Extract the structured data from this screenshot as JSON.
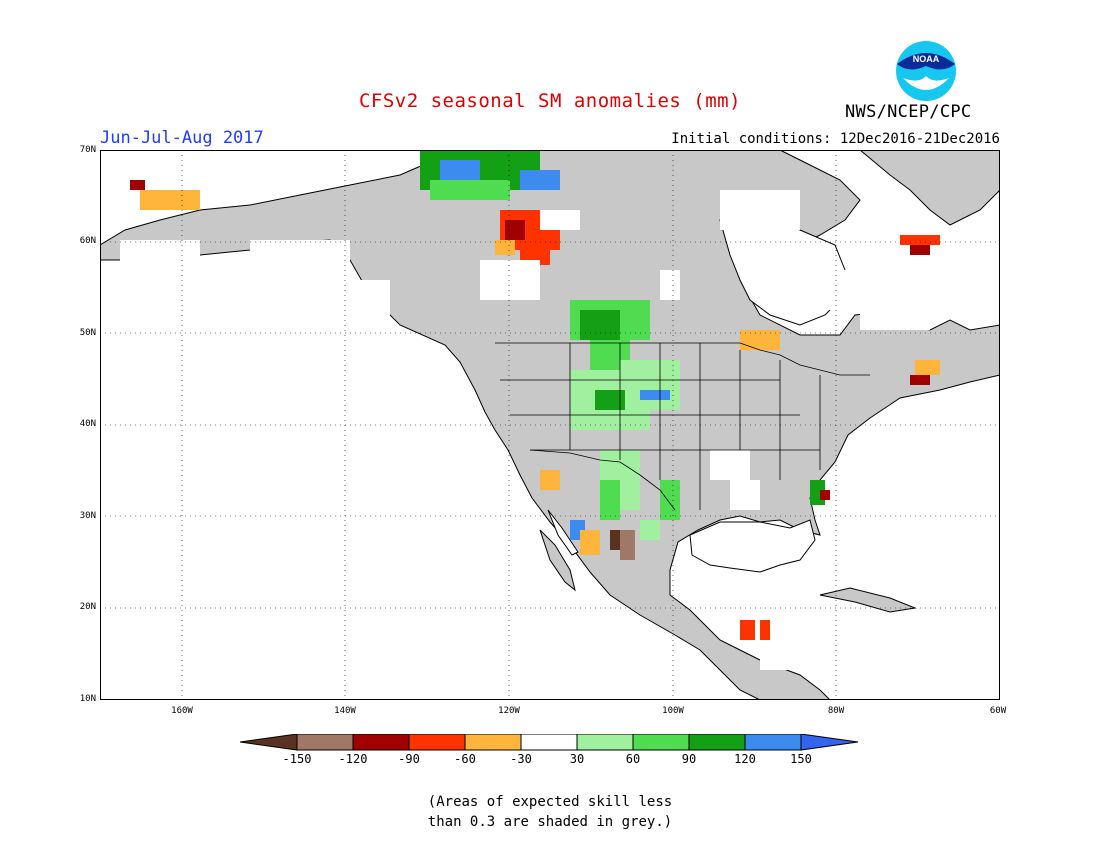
{
  "header": {
    "title": "CFSv2 seasonal SM anomalies (mm)",
    "period": "Jun-Jul-Aug 2017",
    "initial_conditions": "Initial conditions: 12Dec2016-21Dec2016",
    "agency": "NWS/NCEP/CPC",
    "logo_text": "NOAA"
  },
  "map": {
    "lat_labels": [
      "70N",
      "60N",
      "50N",
      "40N",
      "30N",
      "20N",
      "10N"
    ],
    "lon_labels": [
      "160W",
      "140W",
      "120W",
      "100W",
      "80W",
      "60W"
    ],
    "land_color": "#c8c8c8",
    "ocean_color": "#ffffff"
  },
  "colorbar": {
    "labels": [
      "-150",
      "-120",
      "-90",
      "-60",
      "-30",
      "30",
      "60",
      "90",
      "120",
      "150"
    ],
    "colors": [
      "#5a3220",
      "#a07868",
      "#a00000",
      "#ff3300",
      "#ffb43c",
      "#ffffff",
      "#a0f0a0",
      "#50dc50",
      "#14a014",
      "#3c8cf0",
      "#3264f0"
    ]
  },
  "note": {
    "line1": "(Areas of expected skill less",
    "line2": "than 0.3 are shaded in grey.)"
  }
}
